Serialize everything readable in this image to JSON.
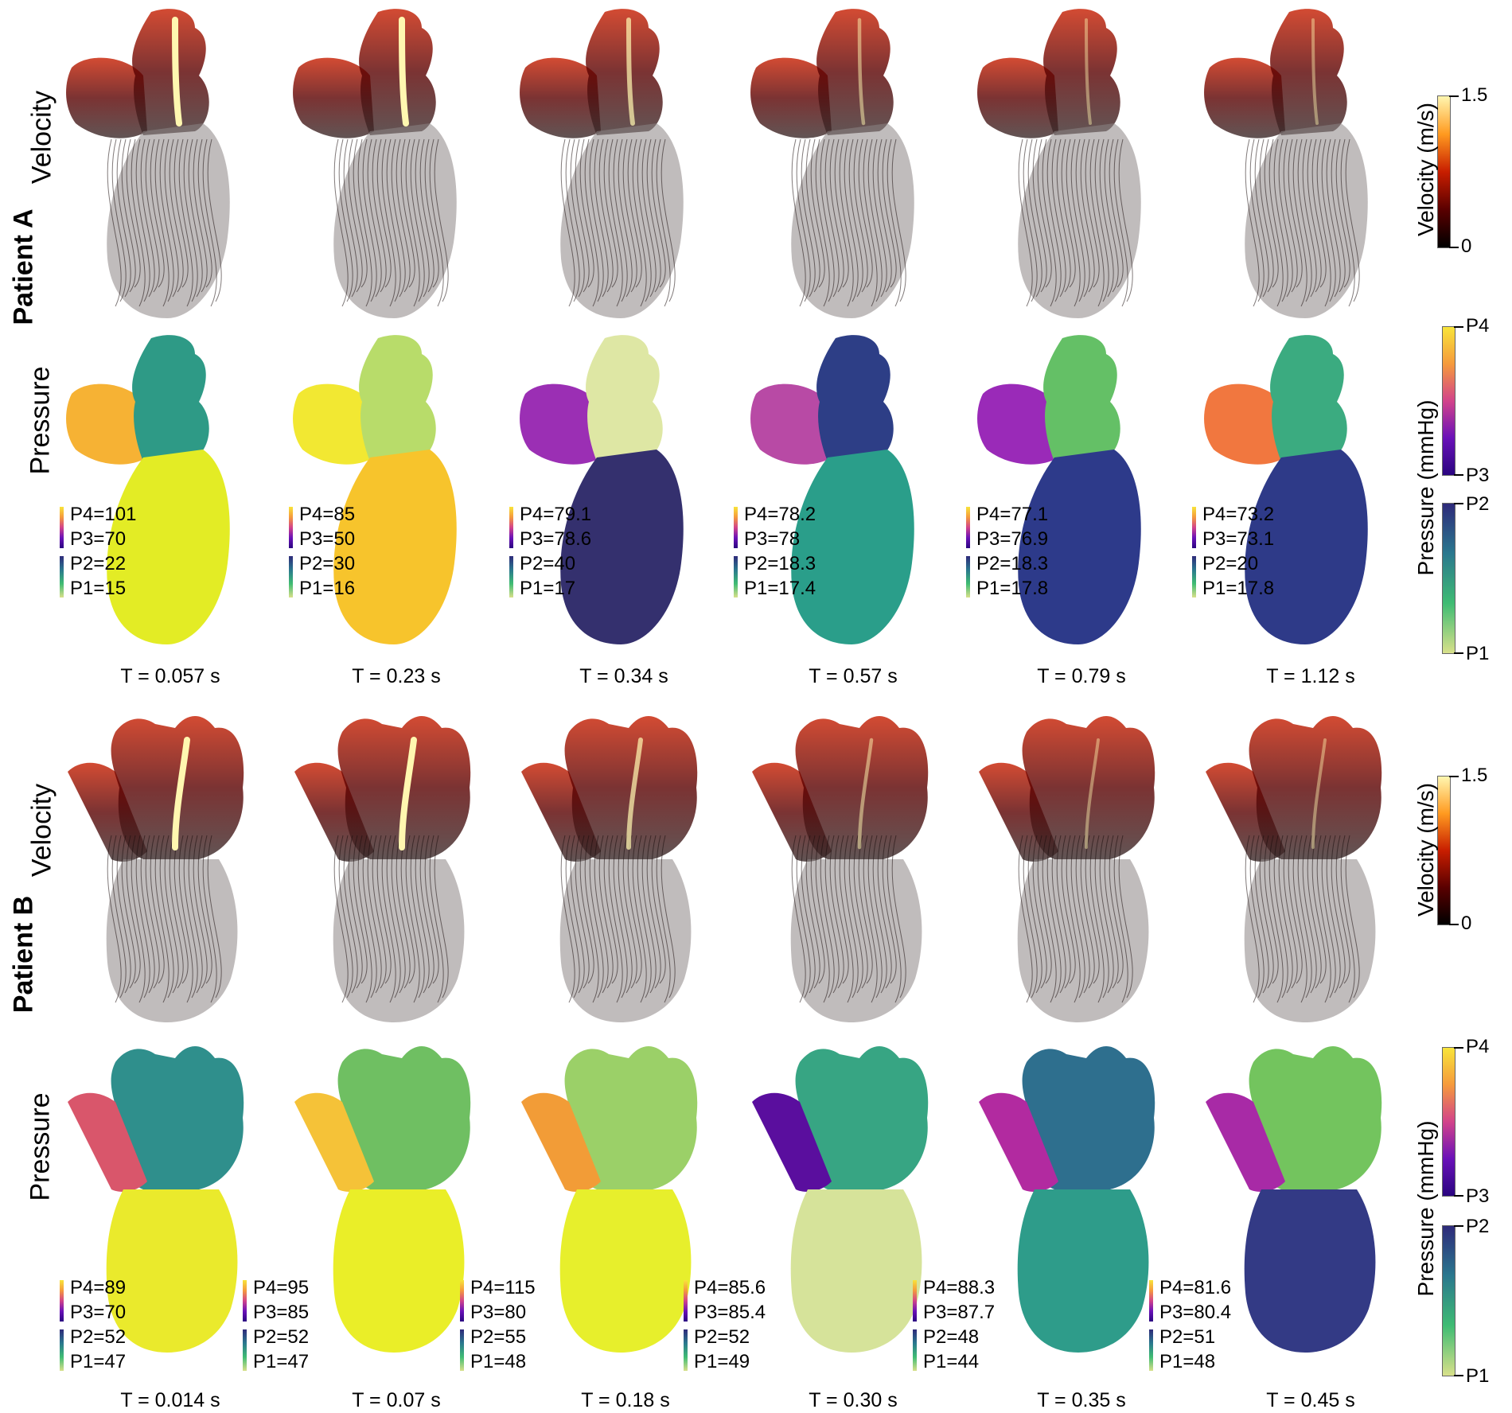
{
  "patients": [
    {
      "label": "Patient A",
      "velocity_label": "Velocity",
      "pressure_label": "Pressure",
      "times": [
        "T = 0.057 s",
        "T = 0.23 s",
        "T = 0.34 s",
        "T = 0.57 s",
        "T = 0.79 s",
        "T = 1.12 s"
      ],
      "pressure_legends": [
        [
          "P4=101",
          "P3=70",
          "P2=22",
          "P1=15"
        ],
        [
          "P4=85",
          "P3=50",
          "P2=30",
          "P1=16"
        ],
        [
          "P4=79.1",
          "P3=78.6",
          "P2=40",
          "P1=17"
        ],
        [
          "P4=78.2",
          "P3=78",
          "P2=18.3",
          "P1=17.4"
        ],
        [
          "P4=77.1",
          "P3=76.9",
          "P2=18.3",
          "P1=17.8"
        ],
        [
          "P4=73.2",
          "P3=73.1",
          "P2=20",
          "P1=17.8"
        ]
      ],
      "velocity_colorbar": {
        "title": "Velocity (m/s)",
        "max": "1.5",
        "min": "0"
      },
      "pressure_colorbar": {
        "title": "Pressure (mmHg)",
        "p4": "P4",
        "p3": "P3",
        "p2": "P2",
        "p1": "P1"
      }
    },
    {
      "label": "Patient B",
      "velocity_label": "Velocity",
      "pressure_label": "Pressure",
      "times": [
        "T = 0.014 s",
        "T = 0.07 s",
        "T = 0.18 s",
        "T = 0.30 s",
        "T = 0.35 s",
        "T = 0.45 s"
      ],
      "pressure_legends": [
        [
          "P4=89",
          "P3=70",
          "P2=52",
          "P1=47"
        ],
        [
          "P4=95",
          "P3=85",
          "P2=52",
          "P1=47"
        ],
        [
          "P4=115",
          "P3=80",
          "P2=55",
          "P1=48"
        ],
        [
          "P4=85.6",
          "P3=85.4",
          "P2=52",
          "P1=49"
        ],
        [
          "P4=88.3",
          "P3=87.7",
          "P2=48",
          "P1=44"
        ],
        [
          "P4=81.6",
          "P3=80.4",
          "P2=51",
          "P1=48"
        ]
      ],
      "velocity_colorbar": {
        "title": "Velocity (m/s)",
        "max": "1.5",
        "min": "0"
      },
      "pressure_colorbar": {
        "title": "Pressure (mmHg)",
        "p4": "P4",
        "p3": "P3",
        "p2": "P2",
        "p1": "P1"
      }
    }
  ],
  "colors": {
    "velocity_ramp": [
      "#000000",
      "#5a0000",
      "#c81e00",
      "#ff6a00",
      "#fff7b0"
    ],
    "plasma_ramp": [
      "#2a0580",
      "#6a11b8",
      "#d2438a",
      "#f59a3c",
      "#f8e43a"
    ],
    "viridis_ramp": [
      "#d8e08a",
      "#3fbc73",
      "#2a788e",
      "#2e2a7a"
    ]
  },
  "panel_fills": {
    "A": [
      {
        "atrium": "#f6b234",
        "vessel": "#2e9a86",
        "ventricle": "#e3ec25"
      },
      {
        "atrium": "#f2e832",
        "vessel": "#b8dc6a",
        "ventricle": "#f7c42c"
      },
      {
        "atrium": "#9b2fb4",
        "vessel": "#dee7a4",
        "ventricle": "#34306e"
      },
      {
        "atrium": "#b84aa5",
        "vessel": "#2d3e86",
        "ventricle": "#2a9e8a"
      },
      {
        "atrium": "#9a2ab8",
        "vessel": "#64c066",
        "ventricle": "#2d3a8a"
      },
      {
        "atrium": "#f1773f",
        "vessel": "#3bab80",
        "ventricle": "#2e3a88"
      }
    ],
    "B": [
      {
        "atrium": "#d9566b",
        "vessel": "#2f8f8c",
        "ventricle": "#eaea2c"
      },
      {
        "atrium": "#f5c238",
        "vessel": "#6fbf62",
        "ventricle": "#eaee28"
      },
      {
        "atrium": "#f29c37",
        "vessel": "#9bd068",
        "ventricle": "#e7ef2c"
      },
      {
        "atrium": "#5a0e9e",
        "vessel": "#37a583",
        "ventricle": "#d6e39a"
      },
      {
        "atrium": "#b22aa0",
        "vessel": "#2e6f8e",
        "ventricle": "#2e9c8a"
      },
      {
        "atrium": "#a82aa6",
        "vessel": "#73c45e",
        "ventricle": "#333a85"
      }
    ]
  }
}
